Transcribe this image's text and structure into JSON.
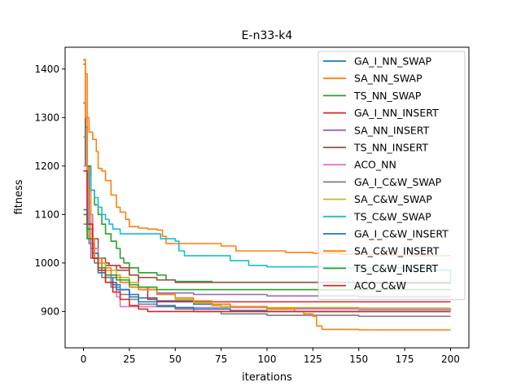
{
  "chart_data": {
    "type": "line",
    "title": "E-n33-k4",
    "xlabel": "iterations",
    "ylabel": "fitness",
    "xlim": [
      -10,
      210
    ],
    "ylim": [
      825,
      1445
    ],
    "xticks": [
      0,
      25,
      50,
      75,
      100,
      125,
      150,
      175,
      200
    ],
    "yticks": [
      900,
      1000,
      1100,
      1200,
      1300,
      1400
    ],
    "grid": false,
    "legend_position": "top-right",
    "series": [
      {
        "name": "GA_I_NN_SWAP",
        "color": "#1f77b4",
        "points": [
          [
            0,
            1330
          ],
          [
            1,
            1200
          ],
          [
            3,
            1080
          ],
          [
            5,
            1030
          ],
          [
            8,
            990
          ],
          [
            12,
            970
          ],
          [
            16,
            955
          ],
          [
            20,
            945
          ],
          [
            25,
            935
          ],
          [
            30,
            928
          ],
          [
            40,
            922
          ],
          [
            60,
            915
          ],
          [
            80,
            910
          ],
          [
            100,
            906
          ],
          [
            150,
            904
          ],
          [
            200,
            903
          ]
        ]
      },
      {
        "name": "SA_NN_SWAP",
        "color": "#ff7f0e",
        "points": [
          [
            0,
            1420
          ],
          [
            1,
            1390
          ],
          [
            2,
            1300
          ],
          [
            3,
            1270
          ],
          [
            5,
            1255
          ],
          [
            7,
            1230
          ],
          [
            8,
            1195
          ],
          [
            10,
            1190
          ],
          [
            12,
            1170
          ],
          [
            15,
            1140
          ],
          [
            18,
            1115
          ],
          [
            20,
            1105
          ],
          [
            23,
            1090
          ],
          [
            25,
            1075
          ],
          [
            30,
            1072
          ],
          [
            35,
            1070
          ],
          [
            40,
            1068
          ],
          [
            43,
            1055
          ],
          [
            45,
            1040
          ],
          [
            60,
            1040
          ],
          [
            70,
            1040
          ],
          [
            75,
            1035
          ],
          [
            80,
            1035
          ],
          [
            83,
            1025
          ],
          [
            100,
            1025
          ],
          [
            110,
            1022
          ],
          [
            125,
            1020
          ],
          [
            135,
            1020
          ],
          [
            140,
            1018
          ],
          [
            160,
            1016
          ],
          [
            175,
            1015
          ],
          [
            200,
            1015
          ]
        ]
      },
      {
        "name": "TS_NN_SWAP",
        "color": "#2ca02c",
        "points": [
          [
            0,
            1410
          ],
          [
            1,
            1280
          ],
          [
            2,
            1200
          ],
          [
            4,
            1150
          ],
          [
            6,
            1120
          ],
          [
            8,
            1100
          ],
          [
            10,
            1080
          ],
          [
            12,
            1060
          ],
          [
            15,
            1045
          ],
          [
            18,
            1030
          ],
          [
            20,
            1010
          ],
          [
            22,
            1000
          ],
          [
            25,
            990
          ],
          [
            30,
            980
          ],
          [
            40,
            975
          ],
          [
            45,
            965
          ],
          [
            50,
            962
          ],
          [
            70,
            960
          ],
          [
            100,
            960
          ],
          [
            150,
            958
          ],
          [
            200,
            957
          ]
        ]
      },
      {
        "name": "GA_I_NN_INSERT",
        "color": "#d62728",
        "points": [
          [
            0,
            1190
          ],
          [
            2,
            1070
          ],
          [
            4,
            1030
          ],
          [
            6,
            1010
          ],
          [
            10,
            1000
          ],
          [
            14,
            995
          ],
          [
            20,
            990
          ],
          [
            25,
            975
          ],
          [
            30,
            950
          ],
          [
            35,
            925
          ],
          [
            40,
            920
          ],
          [
            60,
            920
          ],
          [
            100,
            920
          ],
          [
            150,
            920
          ],
          [
            200,
            920
          ]
        ]
      },
      {
        "name": "SA_NN_INSERT",
        "color": "#9467bd",
        "points": [
          [
            0,
            1100
          ],
          [
            2,
            1050
          ],
          [
            4,
            1010
          ],
          [
            6,
            1000
          ],
          [
            10,
            985
          ],
          [
            15,
            970
          ],
          [
            20,
            960
          ],
          [
            25,
            950
          ],
          [
            30,
            945
          ],
          [
            40,
            938
          ],
          [
            60,
            935
          ],
          [
            100,
            932
          ],
          [
            150,
            930
          ],
          [
            200,
            930
          ]
        ]
      },
      {
        "name": "TS_NN_INSERT",
        "color": "#8c564b",
        "points": [
          [
            0,
            1330
          ],
          [
            1,
            1200
          ],
          [
            3,
            1100
          ],
          [
            5,
            1050
          ],
          [
            8,
            1010
          ],
          [
            12,
            995
          ],
          [
            18,
            985
          ],
          [
            25,
            975
          ],
          [
            30,
            970
          ],
          [
            40,
            965
          ],
          [
            50,
            960
          ],
          [
            100,
            960
          ],
          [
            150,
            960
          ],
          [
            200,
            960
          ]
        ]
      },
      {
        "name": "ACO_NN",
        "color": "#e377c2",
        "points": [
          [
            0,
            1200
          ],
          [
            2,
            1100
          ],
          [
            5,
            1030
          ],
          [
            8,
            1000
          ],
          [
            12,
            970
          ],
          [
            15,
            950
          ],
          [
            18,
            930
          ],
          [
            20,
            910
          ],
          [
            25,
            910
          ],
          [
            30,
            910
          ],
          [
            50,
            908
          ],
          [
            100,
            905
          ],
          [
            150,
            905
          ],
          [
            200,
            905
          ]
        ]
      },
      {
        "name": "GA_I_C&W_SWAP",
        "color": "#7f7f7f",
        "points": [
          [
            0,
            1080
          ],
          [
            3,
            1040
          ],
          [
            6,
            1000
          ],
          [
            10,
            970
          ],
          [
            15,
            950
          ],
          [
            20,
            935
          ],
          [
            25,
            925
          ],
          [
            30,
            915
          ],
          [
            40,
            910
          ],
          [
            50,
            905
          ],
          [
            60,
            900
          ],
          [
            75,
            895
          ],
          [
            100,
            892
          ],
          [
            150,
            890
          ],
          [
            200,
            890
          ]
        ]
      },
      {
        "name": "SA_C&W_SWAP",
        "color": "#bcbd22",
        "points": [
          [
            0,
            1100
          ],
          [
            2,
            1060
          ],
          [
            5,
            1020
          ],
          [
            8,
            1000
          ],
          [
            12,
            985
          ],
          [
            18,
            970
          ],
          [
            25,
            960
          ],
          [
            30,
            950
          ],
          [
            40,
            935
          ],
          [
            50,
            925
          ],
          [
            60,
            918
          ],
          [
            70,
            912
          ],
          [
            75,
            910
          ],
          [
            100,
            908
          ],
          [
            150,
            907
          ],
          [
            200,
            907
          ]
        ]
      },
      {
        "name": "TS_C&W_SWAP",
        "color": "#17becf",
        "points": [
          [
            0,
            1260
          ],
          [
            2,
            1180
          ],
          [
            4,
            1150
          ],
          [
            6,
            1135
          ],
          [
            8,
            1115
          ],
          [
            10,
            1100
          ],
          [
            12,
            1090
          ],
          [
            14,
            1080
          ],
          [
            16,
            1070
          ],
          [
            20,
            1060
          ],
          [
            30,
            1060
          ],
          [
            40,
            1060
          ],
          [
            42,
            1050
          ],
          [
            50,
            1045
          ],
          [
            52,
            1025
          ],
          [
            55,
            1015
          ],
          [
            70,
            1015
          ],
          [
            80,
            1005
          ],
          [
            90,
            995
          ],
          [
            100,
            992
          ],
          [
            125,
            992
          ],
          [
            140,
            990
          ],
          [
            150,
            990
          ],
          [
            175,
            985
          ],
          [
            200,
            960
          ]
        ]
      },
      {
        "name": "GA_I_C&W_INSERT",
        "color": "#1f77b4",
        "points": [
          [
            0,
            1110
          ],
          [
            2,
            1070
          ],
          [
            5,
            1020
          ],
          [
            8,
            980
          ],
          [
            12,
            960
          ],
          [
            18,
            945
          ],
          [
            25,
            930
          ],
          [
            30,
            920
          ],
          [
            40,
            912
          ],
          [
            50,
            908
          ],
          [
            60,
            905
          ],
          [
            80,
            902
          ],
          [
            100,
            900
          ],
          [
            150,
            900
          ],
          [
            200,
            900
          ]
        ]
      },
      {
        "name": "SA_C&W_INSERT",
        "color": "#ff7f0e",
        "points": [
          [
            0,
            1418
          ],
          [
            1,
            1300
          ],
          [
            2,
            1150
          ],
          [
            4,
            1050
          ],
          [
            6,
            1010
          ],
          [
            10,
            990
          ],
          [
            15,
            975
          ],
          [
            20,
            960
          ],
          [
            25,
            950
          ],
          [
            30,
            945
          ],
          [
            40,
            935
          ],
          [
            50,
            928
          ],
          [
            60,
            922
          ],
          [
            70,
            915
          ],
          [
            80,
            910
          ],
          [
            100,
            905
          ],
          [
            115,
            900
          ],
          [
            120,
            895
          ],
          [
            125,
            890
          ],
          [
            127,
            870
          ],
          [
            130,
            863
          ],
          [
            150,
            862
          ],
          [
            175,
            862
          ],
          [
            200,
            862
          ]
        ]
      },
      {
        "name": "TS_C&W_INSERT",
        "color": "#2ca02c",
        "points": [
          [
            0,
            1100
          ],
          [
            2,
            1050
          ],
          [
            5,
            1010
          ],
          [
            8,
            990
          ],
          [
            12,
            975
          ],
          [
            18,
            965
          ],
          [
            25,
            955
          ],
          [
            30,
            950
          ],
          [
            40,
            945
          ],
          [
            50,
            945
          ],
          [
            100,
            945
          ],
          [
            150,
            945
          ],
          [
            175,
            945
          ],
          [
            200,
            945
          ]
        ]
      },
      {
        "name": "ACO_C&W",
        "color": "#d62728",
        "points": [
          [
            0,
            1190
          ],
          [
            2,
            1080
          ],
          [
            5,
            1010
          ],
          [
            8,
            985
          ],
          [
            12,
            960
          ],
          [
            16,
            940
          ],
          [
            20,
            925
          ],
          [
            25,
            912
          ],
          [
            30,
            905
          ],
          [
            35,
            900
          ],
          [
            50,
            900
          ],
          [
            100,
            900
          ],
          [
            150,
            900
          ],
          [
            200,
            900
          ]
        ]
      }
    ]
  }
}
